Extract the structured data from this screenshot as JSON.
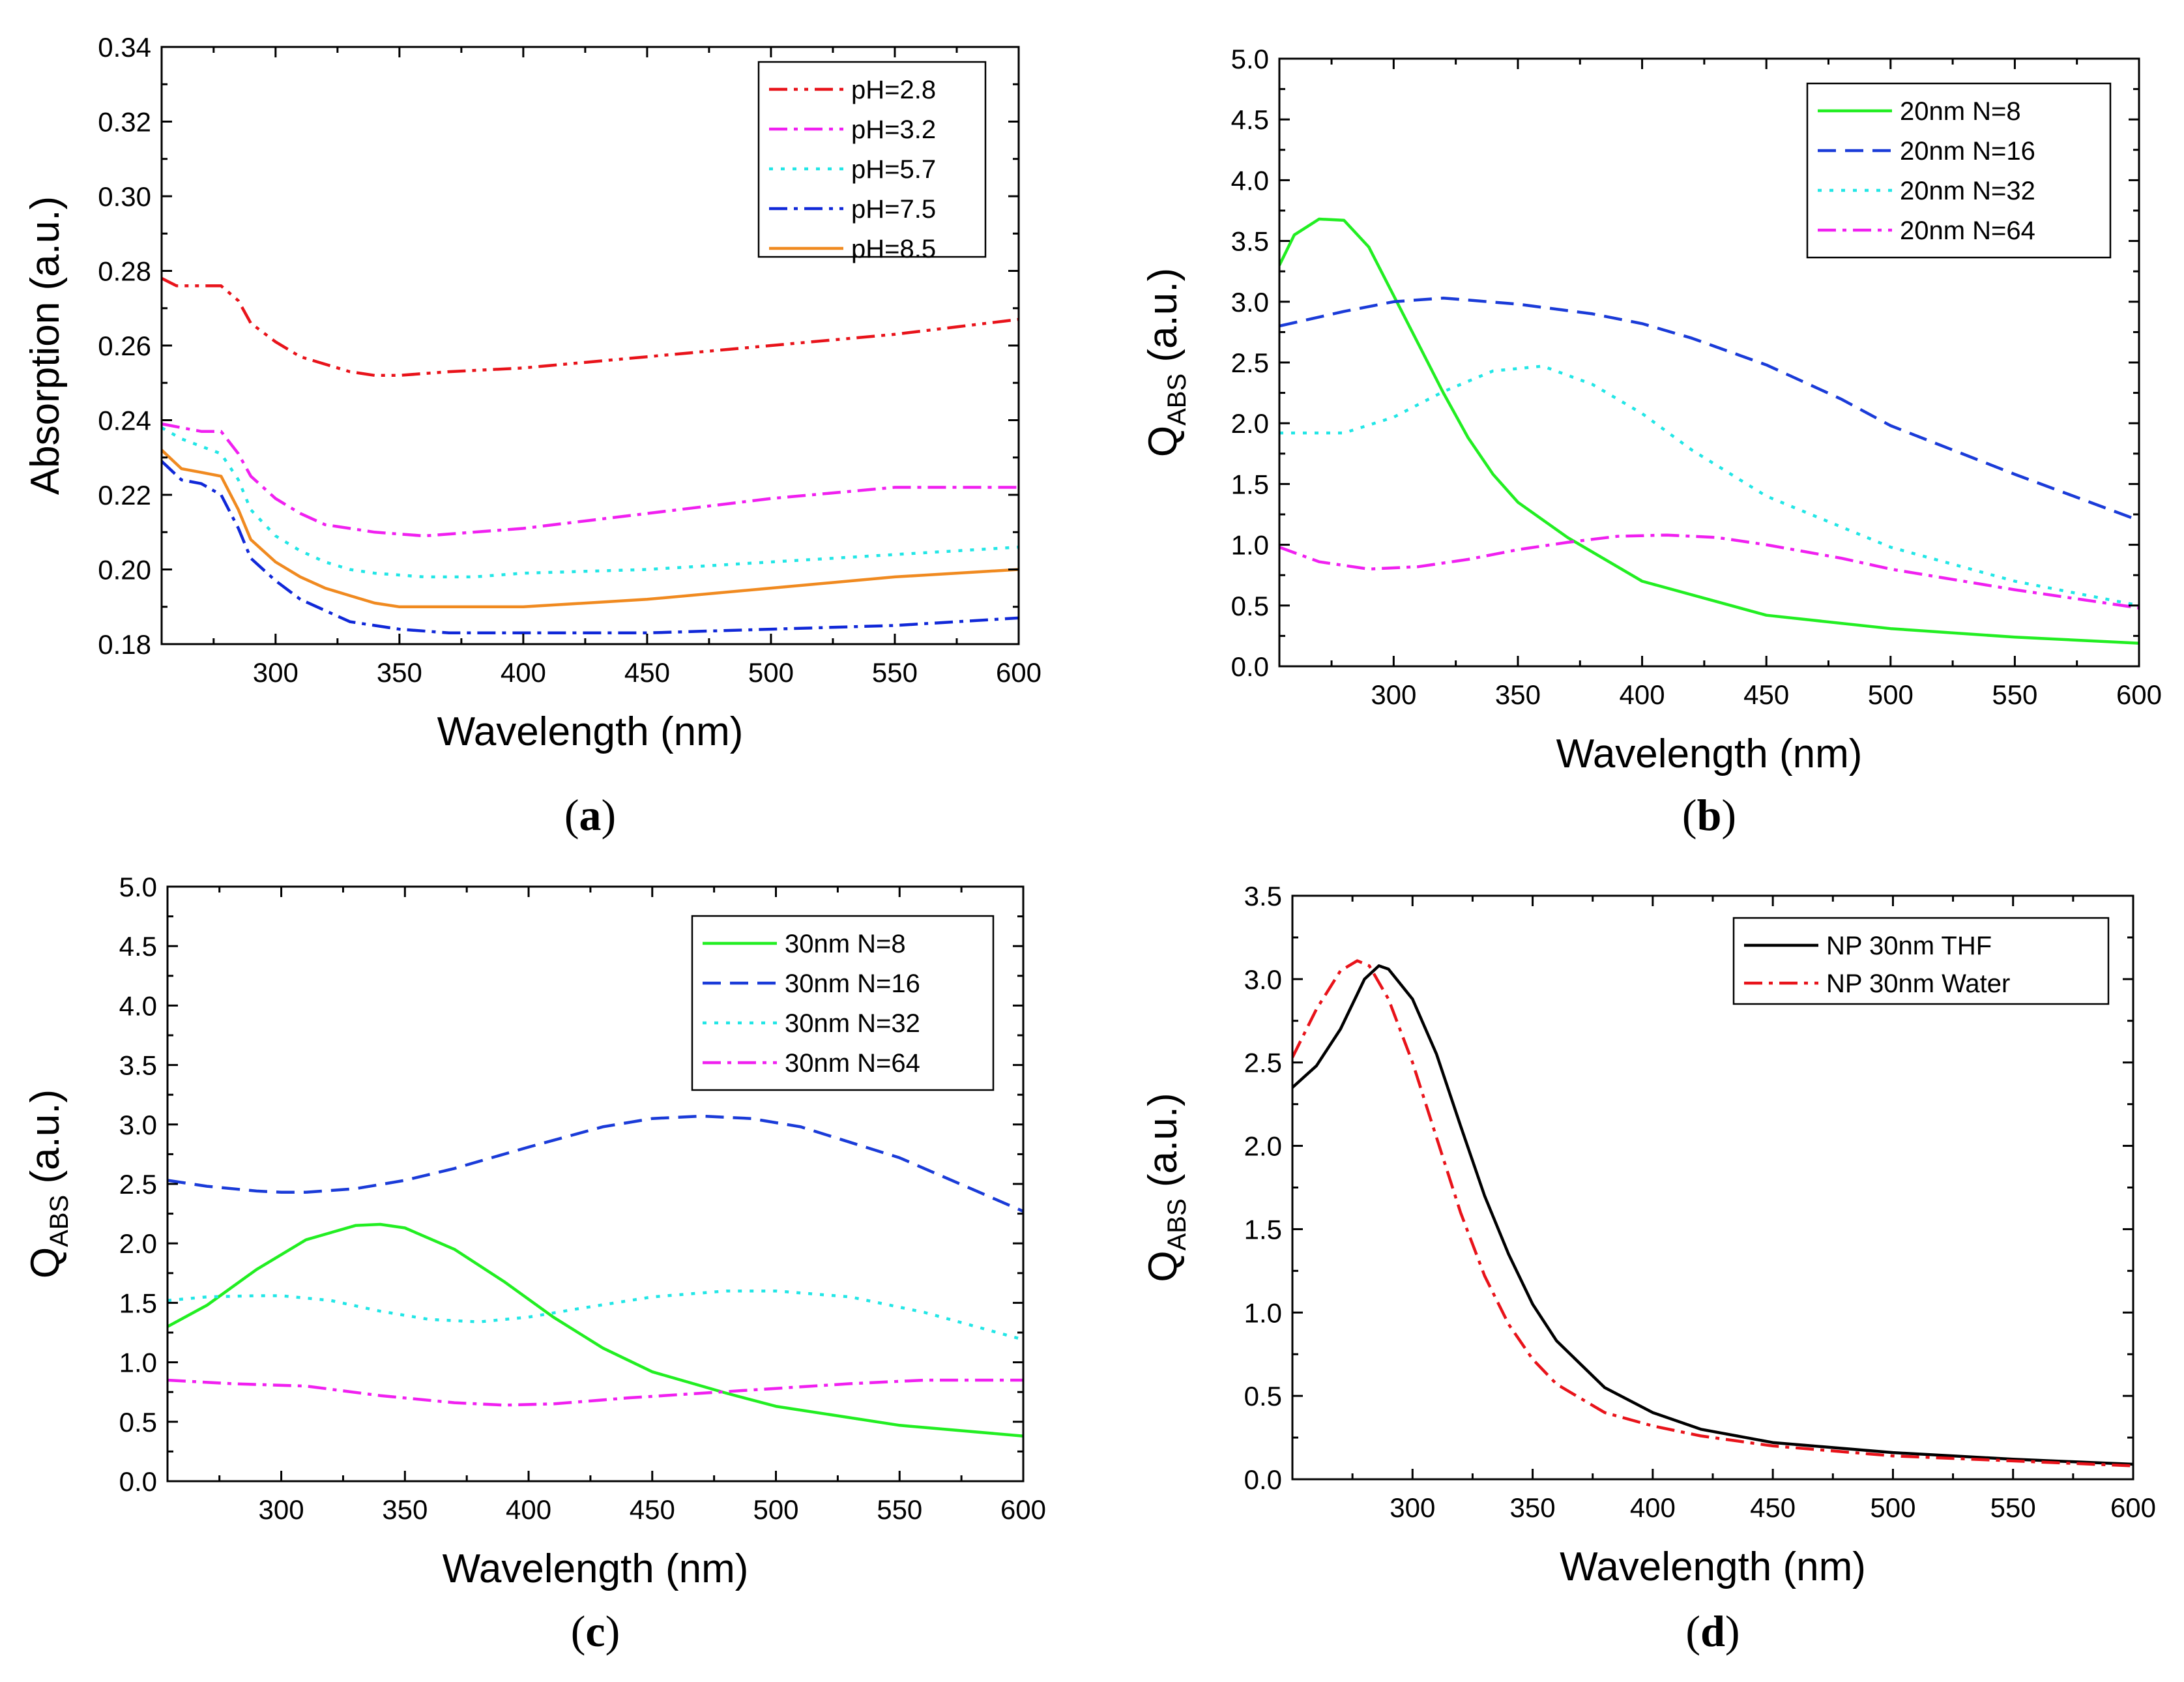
{
  "chart_data": [
    {
      "type": "line",
      "panel": "a",
      "caption": "a",
      "xlabel": "Wavelength (nm)",
      "ylabel": "Absorption (a.u.)",
      "xlim": [
        254,
        600
      ],
      "ylim": [
        0.18,
        0.34
      ],
      "xticks": [
        300,
        350,
        400,
        450,
        500,
        550,
        600
      ],
      "yticks": [
        0.18,
        0.2,
        0.22,
        0.24,
        0.26,
        0.28,
        0.3,
        0.32,
        0.34
      ],
      "ytick_labels": [
        "0.18",
        "0.20",
        "0.22",
        "0.24",
        "0.26",
        "0.28",
        "0.30",
        "0.32",
        "0.34"
      ],
      "legend_position": "top-right",
      "series": [
        {
          "name": "pH=2.8",
          "color": "#e8131a",
          "style": "dashdotdot",
          "x": [
            254,
            260,
            270,
            278,
            285,
            290,
            300,
            310,
            320,
            330,
            340,
            350,
            370,
            400,
            450,
            500,
            550,
            600
          ],
          "y": [
            0.278,
            0.276,
            0.276,
            0.276,
            0.272,
            0.266,
            0.261,
            0.257,
            0.255,
            0.253,
            0.252,
            0.252,
            0.253,
            0.254,
            0.257,
            0.26,
            0.263,
            0.267
          ]
        },
        {
          "name": "pH=3.2",
          "color": "#f020f0",
          "style": "dashdot",
          "x": [
            254,
            262,
            270,
            278,
            285,
            290,
            300,
            310,
            320,
            330,
            340,
            360,
            380,
            400,
            450,
            500,
            550,
            600
          ],
          "y": [
            0.239,
            0.238,
            0.237,
            0.237,
            0.231,
            0.225,
            0.219,
            0.215,
            0.212,
            0.211,
            0.21,
            0.209,
            0.21,
            0.211,
            0.215,
            0.219,
            0.222,
            0.222
          ]
        },
        {
          "name": "pH=5.7",
          "color": "#22e6e6",
          "style": "dotted",
          "x": [
            254,
            262,
            270,
            278,
            285,
            290,
            300,
            310,
            320,
            330,
            340,
            360,
            380,
            400,
            450,
            500,
            550,
            600
          ],
          "y": [
            0.238,
            0.235,
            0.233,
            0.231,
            0.224,
            0.216,
            0.209,
            0.205,
            0.202,
            0.2,
            0.199,
            0.198,
            0.198,
            0.199,
            0.2,
            0.202,
            0.204,
            0.206
          ]
        },
        {
          "name": "pH=7.5",
          "color": "#1028d8",
          "style": "dashdot",
          "x": [
            254,
            262,
            270,
            278,
            285,
            290,
            300,
            310,
            320,
            330,
            340,
            350,
            370,
            400,
            450,
            500,
            550,
            600
          ],
          "y": [
            0.229,
            0.224,
            0.223,
            0.22,
            0.211,
            0.203,
            0.197,
            0.192,
            0.189,
            0.186,
            0.185,
            0.184,
            0.183,
            0.183,
            0.183,
            0.184,
            0.185,
            0.187
          ]
        },
        {
          "name": "pH=8.5",
          "color": "#f08a20",
          "style": "solid",
          "x": [
            254,
            262,
            270,
            278,
            285,
            290,
            300,
            310,
            320,
            330,
            340,
            350,
            370,
            400,
            450,
            500,
            550,
            600
          ],
          "y": [
            0.232,
            0.227,
            0.226,
            0.225,
            0.216,
            0.208,
            0.202,
            0.198,
            0.195,
            0.193,
            0.191,
            0.19,
            0.19,
            0.19,
            0.192,
            0.195,
            0.198,
            0.2
          ]
        }
      ]
    },
    {
      "type": "line",
      "panel": "b",
      "caption": "b",
      "xlabel": "Wavelength (nm)",
      "ylabel": "Q",
      "ylabel_sub": "ABS",
      "ylabel_suffix": " (a.u.)",
      "xlim": [
        254,
        600
      ],
      "ylim": [
        0,
        5
      ],
      "xticks": [
        300,
        350,
        400,
        450,
        500,
        550,
        600
      ],
      "yticks": [
        0,
        0.5,
        1,
        1.5,
        2,
        2.5,
        3,
        3.5,
        4,
        4.5,
        5
      ],
      "ytick_labels": [
        "0.0",
        "0.5",
        "1.0",
        "1.5",
        "2.0",
        "2.5",
        "3.0",
        "3.5",
        "4.0",
        "4.5",
        "5.0"
      ],
      "legend_position": "top-right",
      "series": [
        {
          "name": "20nm N=8",
          "color": "#22ee22",
          "style": "solid",
          "x": [
            254,
            260,
            270,
            280,
            290,
            300,
            310,
            320,
            330,
            340,
            350,
            370,
            400,
            450,
            500,
            550,
            600
          ],
          "y": [
            3.3,
            3.55,
            3.68,
            3.67,
            3.45,
            3.05,
            2.65,
            2.25,
            1.88,
            1.58,
            1.35,
            1.06,
            0.7,
            0.42,
            0.31,
            0.24,
            0.19
          ]
        },
        {
          "name": "20nm N=16",
          "color": "#1a3bd8",
          "style": "dashed",
          "x": [
            254,
            280,
            300,
            320,
            350,
            380,
            400,
            420,
            450,
            480,
            500,
            550,
            600
          ],
          "y": [
            2.8,
            2.92,
            3.0,
            3.03,
            2.98,
            2.9,
            2.82,
            2.7,
            2.48,
            2.2,
            1.98,
            1.58,
            1.2
          ]
        },
        {
          "name": "20nm N=32",
          "color": "#22e6e6",
          "style": "dotted",
          "x": [
            254,
            280,
            300,
            320,
            340,
            360,
            380,
            400,
            420,
            450,
            500,
            550,
            600
          ],
          "y": [
            1.92,
            1.92,
            2.05,
            2.26,
            2.43,
            2.47,
            2.32,
            2.08,
            1.78,
            1.4,
            0.98,
            0.7,
            0.5
          ]
        },
        {
          "name": "20nm N=64",
          "color": "#f020f0",
          "style": "dashdot",
          "x": [
            254,
            270,
            290,
            310,
            330,
            350,
            370,
            390,
            410,
            430,
            450,
            480,
            500,
            550,
            600
          ],
          "y": [
            0.98,
            0.86,
            0.8,
            0.82,
            0.88,
            0.96,
            1.02,
            1.07,
            1.08,
            1.06,
            1.0,
            0.89,
            0.8,
            0.63,
            0.48
          ]
        }
      ]
    },
    {
      "type": "line",
      "panel": "c",
      "caption": "c",
      "xlabel": "Wavelength (nm)",
      "ylabel": "Q",
      "ylabel_sub": "ABS",
      "ylabel_suffix": " (a.u.)",
      "xlim": [
        254,
        600
      ],
      "ylim": [
        0,
        5
      ],
      "xticks": [
        300,
        350,
        400,
        450,
        500,
        550,
        600
      ],
      "yticks": [
        0,
        0.5,
        1,
        1.5,
        2,
        2.5,
        3,
        3.5,
        4,
        4.5,
        5
      ],
      "ytick_labels": [
        "0.0",
        "0.5",
        "1.0",
        "1.5",
        "2.0",
        "2.5",
        "3.0",
        "3.5",
        "4.0",
        "4.5",
        "5.0"
      ],
      "legend_position": "top-right",
      "series": [
        {
          "name": "30nm N=8",
          "color": "#22ee22",
          "style": "solid",
          "x": [
            254,
            270,
            290,
            310,
            330,
            340,
            350,
            370,
            390,
            410,
            430,
            450,
            480,
            500,
            550,
            600
          ],
          "y": [
            1.3,
            1.48,
            1.78,
            2.03,
            2.15,
            2.16,
            2.13,
            1.95,
            1.68,
            1.38,
            1.12,
            0.92,
            0.74,
            0.63,
            0.47,
            0.38
          ]
        },
        {
          "name": "30nm N=16",
          "color": "#1a3bd8",
          "style": "dashed",
          "x": [
            254,
            270,
            290,
            300,
            310,
            330,
            350,
            370,
            400,
            430,
            450,
            470,
            490,
            510,
            550,
            600
          ],
          "y": [
            2.53,
            2.48,
            2.44,
            2.43,
            2.43,
            2.46,
            2.53,
            2.63,
            2.81,
            2.98,
            3.05,
            3.07,
            3.05,
            2.98,
            2.72,
            2.27
          ]
        },
        {
          "name": "30nm N=32",
          "color": "#22e6e6",
          "style": "dotted",
          "x": [
            254,
            270,
            290,
            300,
            320,
            340,
            360,
            380,
            400,
            420,
            450,
            480,
            500,
            530,
            560,
            600
          ],
          "y": [
            1.52,
            1.55,
            1.56,
            1.56,
            1.52,
            1.43,
            1.36,
            1.34,
            1.38,
            1.45,
            1.55,
            1.6,
            1.6,
            1.55,
            1.42,
            1.19
          ]
        },
        {
          "name": "30nm N=64",
          "color": "#f020f0",
          "style": "dashdot",
          "x": [
            254,
            280,
            310,
            340,
            370,
            390,
            410,
            440,
            470,
            500,
            530,
            560,
            600
          ],
          "y": [
            0.85,
            0.82,
            0.8,
            0.72,
            0.66,
            0.64,
            0.65,
            0.7,
            0.74,
            0.78,
            0.82,
            0.85,
            0.85
          ]
        }
      ]
    },
    {
      "type": "line",
      "panel": "d",
      "caption": "d",
      "xlabel": "Wavelength (nm)",
      "ylabel": "Q",
      "ylabel_sub": "ABS",
      "ylabel_suffix": " (a.u.)",
      "xlim": [
        250,
        600
      ],
      "ylim": [
        0,
        3.5
      ],
      "xticks": [
        300,
        350,
        400,
        450,
        500,
        550,
        600
      ],
      "yticks": [
        0,
        0.5,
        1,
        1.5,
        2,
        2.5,
        3,
        3.5
      ],
      "ytick_labels": [
        "0.0",
        "0.5",
        "1.0",
        "1.5",
        "2.0",
        "2.5",
        "3.0",
        "3.5"
      ],
      "legend_position": "top-right",
      "series": [
        {
          "name": "NP 30nm THF",
          "color": "#000000",
          "style": "solid",
          "x": [
            250,
            260,
            270,
            280,
            286,
            290,
            300,
            310,
            320,
            330,
            340,
            350,
            360,
            380,
            400,
            420,
            450,
            500,
            550,
            600
          ],
          "y": [
            2.35,
            2.48,
            2.7,
            3.0,
            3.08,
            3.06,
            2.88,
            2.55,
            2.12,
            1.7,
            1.35,
            1.05,
            0.83,
            0.55,
            0.4,
            0.3,
            0.22,
            0.16,
            0.12,
            0.09
          ]
        },
        {
          "name": "NP 30nm Water",
          "color": "#e8131a",
          "style": "dashdot",
          "x": [
            250,
            260,
            270,
            277,
            282,
            290,
            300,
            310,
            320,
            330,
            340,
            350,
            360,
            380,
            400,
            420,
            450,
            500,
            550,
            600
          ],
          "y": [
            2.53,
            2.82,
            3.05,
            3.11,
            3.08,
            2.88,
            2.5,
            2.05,
            1.6,
            1.22,
            0.93,
            0.72,
            0.57,
            0.4,
            0.32,
            0.26,
            0.2,
            0.14,
            0.11,
            0.08
          ]
        }
      ]
    }
  ]
}
